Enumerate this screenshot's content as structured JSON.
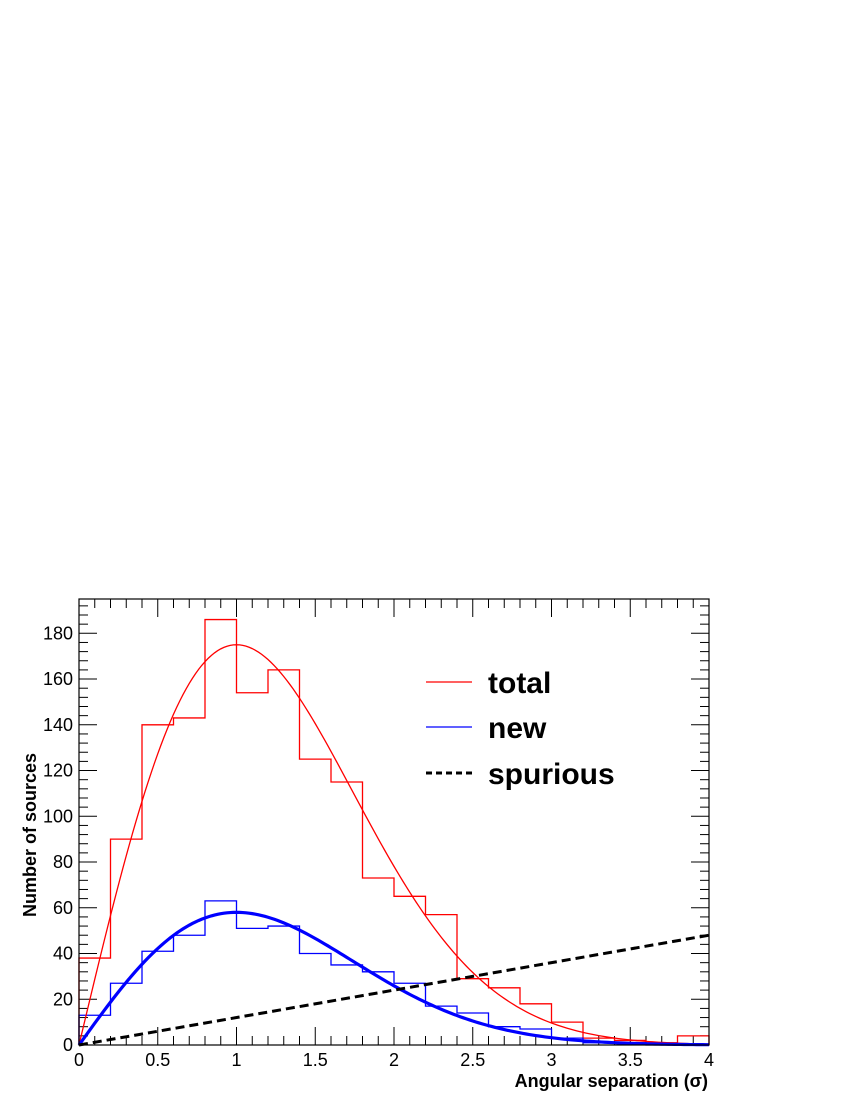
{
  "chart_data": {
    "type": "histogram",
    "xlabel": "Angular separation (σ)",
    "ylabel": "Number of sources",
    "xlim": [
      0,
      4
    ],
    "ylim": [
      0,
      195
    ],
    "x_ticks": [
      "0",
      "0.5",
      "1",
      "1.5",
      "2",
      "2.5",
      "3",
      "3.5",
      "4"
    ],
    "y_ticks": [
      "0",
      "20",
      "40",
      "60",
      "80",
      "100",
      "120",
      "140",
      "160",
      "180"
    ],
    "bin_edges": [
      0,
      0.2,
      0.4,
      0.6,
      0.8,
      1.0,
      1.2,
      1.4,
      1.6,
      1.8,
      2.0,
      2.2,
      2.4,
      2.6,
      2.8,
      3.0,
      3.2,
      3.4,
      3.6,
      3.8,
      4.0
    ],
    "series": [
      {
        "name": "total",
        "kind": "histogram+fit",
        "color": "#ff0000",
        "values": [
          38,
          90,
          140,
          143,
          186,
          154,
          164,
          125,
          115,
          73,
          65,
          57,
          29,
          25,
          18,
          10,
          3,
          2,
          1,
          4
        ],
        "fit": {
          "form": "rayleigh",
          "amplitude": 175,
          "sigma": 1.0
        }
      },
      {
        "name": "new",
        "kind": "histogram+fit",
        "color": "#0000ff",
        "values": [
          13,
          27,
          41,
          48,
          63,
          51,
          52,
          40,
          35,
          32,
          27,
          17,
          14,
          8,
          7,
          3,
          1,
          1,
          0,
          0
        ],
        "fit": {
          "form": "rayleigh",
          "amplitude": 58,
          "sigma": 1.0
        }
      },
      {
        "name": "spurious",
        "kind": "line",
        "color": "#000000",
        "style": "dashed",
        "x": [
          0,
          4
        ],
        "y": [
          0,
          48
        ]
      }
    ],
    "legend": {
      "position": "top-right",
      "entries": [
        "total",
        "new",
        "spurious"
      ]
    }
  }
}
